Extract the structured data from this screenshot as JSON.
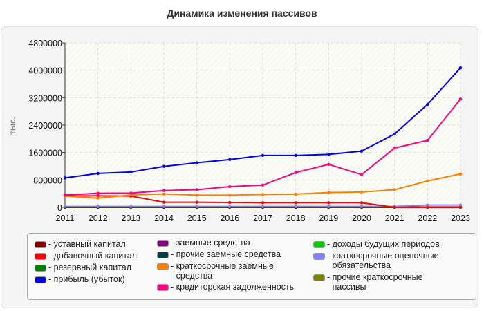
{
  "chart_data": {
    "type": "line",
    "title": "Динамика изменения пассивов",
    "ylabel": "тыс.",
    "xlabel": "",
    "x": [
      "2011",
      "2012",
      "2013",
      "2014",
      "2015",
      "2016",
      "2017",
      "2018",
      "2019",
      "2020",
      "2021",
      "2022",
      "2023"
    ],
    "ylim": [
      0,
      4800000
    ],
    "yticks": [
      "0",
      "800000",
      "1600000",
      "2400000",
      "3200000",
      "4000000",
      "4800000"
    ],
    "grid": true,
    "legend_position": "bottom",
    "series": [
      {
        "name": "уставный капитал",
        "color": "#800000",
        "values": [
          10000,
          10000,
          10000,
          10000,
          10000,
          10000,
          10000,
          10000,
          10000,
          10000,
          10000,
          10000,
          10000
        ]
      },
      {
        "name": "добавочный капитал",
        "color": "#ff0000",
        "values": [
          336000,
          336000,
          329000,
          148000,
          148000,
          141000,
          134000,
          134000,
          134000,
          134000,
          0,
          0,
          0
        ]
      },
      {
        "name": "резервный капитал",
        "color": "#008000",
        "values": [
          2000,
          2000,
          2000,
          2000,
          2000,
          2000,
          2000,
          2000,
          2000,
          2000,
          2000,
          2000,
          2000
        ]
      },
      {
        "name": "прибыль (убыток)",
        "color": "#0000ff",
        "values": [
          860000,
          990000,
          1030000,
          1195000,
          1300000,
          1395000,
          1515000,
          1515000,
          1545000,
          1640000,
          2140000,
          3005000,
          4070000
        ]
      },
      {
        "name": "заемные средства",
        "color": "#800080",
        "values": [
          null,
          null,
          null,
          null,
          null,
          null,
          null,
          null,
          null,
          null,
          null,
          null,
          null
        ]
      },
      {
        "name": "прочие заемные средства",
        "color": "#004040",
        "values": [
          null,
          null,
          null,
          null,
          null,
          null,
          null,
          null,
          null,
          null,
          null,
          null,
          null
        ]
      },
      {
        "name": "краткосрочные заемные средства",
        "color": "#ff8000",
        "values": [
          330000,
          270000,
          360000,
          390000,
          355000,
          355000,
          375000,
          385000,
          430000,
          445000,
          515000,
          770000,
          975000
        ]
      },
      {
        "name": "кредиторская задолженность",
        "color": "#ff0080",
        "values": [
          360000,
          410000,
          415000,
          490000,
          515000,
          605000,
          650000,
          1015000,
          1255000,
          955000,
          1730000,
          1955000,
          3160000
        ]
      },
      {
        "name": "доходы будущих периодов",
        "color": "#00cc00",
        "values": [
          0,
          0,
          0,
          0,
          0,
          0,
          0,
          0,
          0,
          0,
          3000,
          3000,
          3000
        ]
      },
      {
        "name": "краткосрочные оценочные обязательства",
        "color": "#8080ff",
        "values": [
          27000,
          27000,
          27000,
          27000,
          27000,
          27000,
          27000,
          27000,
          27000,
          27000,
          27000,
          67000,
          67000
        ]
      },
      {
        "name": "прочие краткосрочные пассивы",
        "color": "#808000",
        "values": [
          3000,
          3000,
          3000,
          3000,
          3000,
          3000,
          3000,
          3000,
          3000,
          3000,
          3000,
          3000,
          3000
        ]
      }
    ]
  }
}
